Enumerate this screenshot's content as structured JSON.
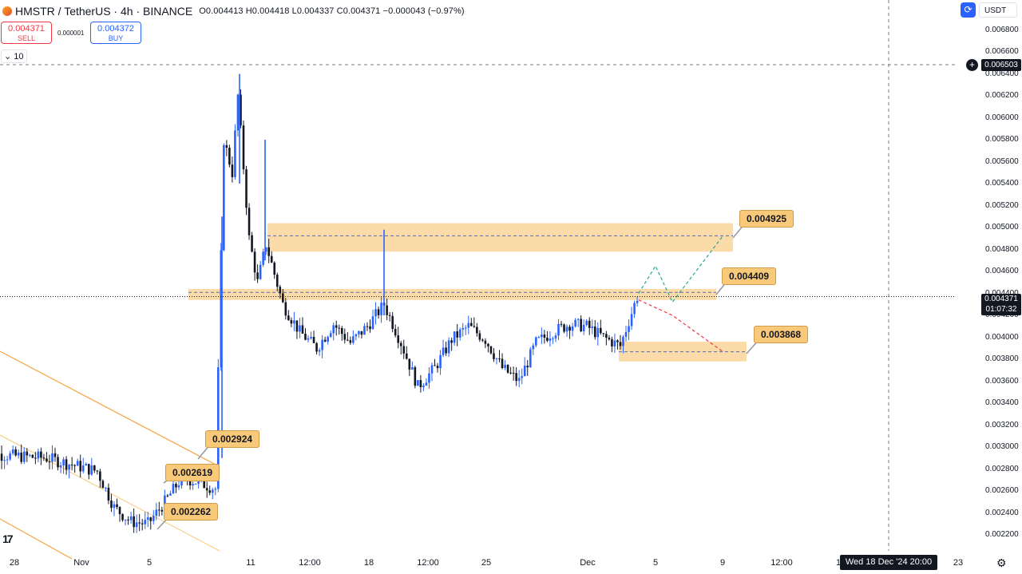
{
  "header": {
    "symbol": "HMSTR / TetherUS · 4h · BINANCE",
    "ohlc": "O0.004413 H0.004418 L0.004337 C0.004371 −0.000043 (−0.97%)"
  },
  "trade": {
    "sell_price": "0.004371",
    "sell_label": "SELL",
    "spread": "0.000001",
    "buy_price": "0.004372",
    "buy_label": "BUY"
  },
  "indicator_toggle": "10",
  "logo_text": "17",
  "axis": {
    "currency": "USDT",
    "crosshair_price": "0.006503",
    "last_price": "0.004371",
    "countdown": "01:07:32",
    "crosshair_time": "Wed 18 Dec '24   20:00"
  },
  "chart_data": {
    "type": "candlestick",
    "title": "",
    "timeframe": "4h",
    "y_axis": {
      "min": 0.0021,
      "max": 0.007,
      "scale": "linear",
      "position": "right",
      "ticks": [
        "0.006800",
        "0.006600",
        "0.006400",
        "0.006200",
        "0.006000",
        "0.005800",
        "0.005600",
        "0.005400",
        "0.005200",
        "0.005000",
        "0.004800",
        "0.004600",
        "0.004400",
        "0.004200",
        "0.004000",
        "0.003800",
        "0.003600",
        "0.003400",
        "0.003200",
        "0.003000",
        "0.002800",
        "0.002600",
        "0.002400",
        "0.002200"
      ]
    },
    "x_axis": {
      "ticks": [
        "28",
        "Nov",
        "5",
        "11",
        "12:00",
        "18",
        "12:00",
        "25",
        "Dec",
        "5",
        "9",
        "12:00",
        "1",
        "23"
      ]
    },
    "price_path": [
      [
        "2024-10-26",
        0.00295
      ],
      [
        "2024-10-28",
        0.00292
      ],
      [
        "2024-10-30",
        0.0029
      ],
      [
        "2024-11-01",
        0.00282
      ],
      [
        "2024-11-02",
        0.00278
      ],
      [
        "2024-11-03",
        0.00245
      ],
      [
        "2024-11-04",
        0.00232
      ],
      [
        "2024-11-05",
        0.0023
      ],
      [
        "2024-11-06",
        0.0025
      ],
      [
        "2024-11-07",
        0.00272
      ],
      [
        "2024-11-08",
        0.00268
      ],
      [
        "2024-11-09",
        0.00262
      ],
      [
        "2024-11-09 12:00",
        0.0058
      ],
      [
        "2024-11-10",
        0.0055
      ],
      [
        "2024-11-10 08:00",
        0.0062
      ],
      [
        "2024-11-11",
        0.0049
      ],
      [
        "2024-11-11 12:00",
        0.0045
      ],
      [
        "2024-11-12",
        0.00485
      ],
      [
        "2024-11-13",
        0.0043
      ],
      [
        "2024-11-14",
        0.00405
      ],
      [
        "2024-11-15",
        0.0039
      ],
      [
        "2024-11-16",
        0.00412
      ],
      [
        "2024-11-17",
        0.00395
      ],
      [
        "2024-11-18",
        0.0041
      ],
      [
        "2024-11-19",
        0.0043
      ],
      [
        "2024-11-20",
        0.00395
      ],
      [
        "2024-11-21",
        0.00355
      ],
      [
        "2024-11-22",
        0.00372
      ],
      [
        "2024-11-23",
        0.00398
      ],
      [
        "2024-11-24",
        0.0041
      ],
      [
        "2024-11-25",
        0.00398
      ],
      [
        "2024-11-26",
        0.00372
      ],
      [
        "2024-11-27",
        0.0036
      ],
      [
        "2024-11-28",
        0.00395
      ],
      [
        "2024-11-29",
        0.00405
      ],
      [
        "2024-11-30",
        0.00412
      ],
      [
        "2024-12-01",
        0.0041
      ],
      [
        "2024-12-02",
        0.004
      ],
      [
        "2024-12-03",
        0.00392
      ],
      [
        "2024-12-03 12:00",
        0.00415
      ],
      [
        "2024-12-04",
        0.004371
      ]
    ],
    "zones": [
      {
        "price": 0.004925,
        "low": 0.00478,
        "high": 0.00504
      },
      {
        "price": 0.004409,
        "low": 0.00434,
        "high": 0.00444
      },
      {
        "price": 0.003868,
        "low": 0.00378,
        "high": 0.00396
      }
    ],
    "labels": [
      "0.004925",
      "0.004409",
      "0.003868",
      "0.002924",
      "0.002619",
      "0.002262"
    ],
    "projections": [
      {
        "color": "#26a69a",
        "points": [
          [
            "2024-12-04",
            0.0044
          ],
          [
            "2024-12-05",
            0.00465
          ],
          [
            "2024-12-06",
            0.00432
          ],
          [
            "2024-12-09",
            0.004925
          ]
        ]
      },
      {
        "color": "#f23645",
        "points": [
          [
            "2024-12-04",
            0.00434
          ],
          [
            "2024-12-06",
            0.0042
          ],
          [
            "2024-12-09",
            0.003868
          ]
        ]
      }
    ],
    "colors": {
      "up": "#2962ff",
      "down": "#131722",
      "zone": "#f9c97a",
      "channel": "#f6a23c"
    },
    "grid": false
  }
}
